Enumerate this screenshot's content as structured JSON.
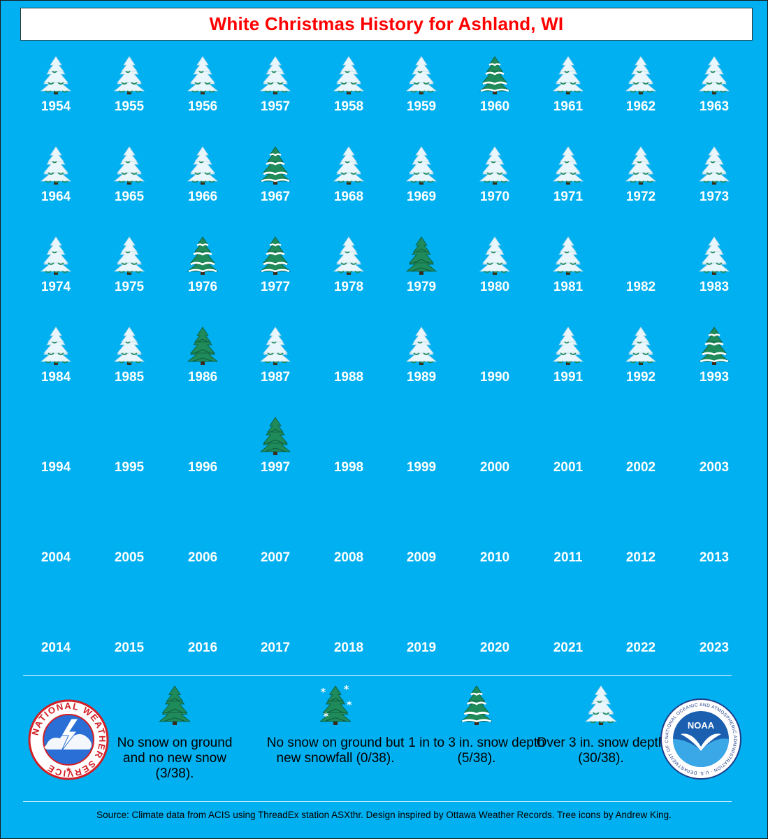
{
  "title": "White Christmas History for Ashland, WI",
  "colors": {
    "background": "#00b0f0",
    "title": "#ff0000",
    "tree_green": "#1f8a5a",
    "tree_dark": "#0e5a3a",
    "snow": "#ffffff"
  },
  "grid": {
    "columns": 10,
    "rows": [
      [
        {
          "year": "1954",
          "icon": "over-3"
        },
        {
          "year": "1955",
          "icon": "over-3"
        },
        {
          "year": "1956",
          "icon": "over-3"
        },
        {
          "year": "1957",
          "icon": "over-3"
        },
        {
          "year": "1958",
          "icon": "over-3"
        },
        {
          "year": "1959",
          "icon": "over-3"
        },
        {
          "year": "1960",
          "icon": "1-to-3"
        },
        {
          "year": "1961",
          "icon": "over-3"
        },
        {
          "year": "1962",
          "icon": "over-3"
        },
        {
          "year": "1963",
          "icon": "over-3"
        }
      ],
      [
        {
          "year": "1964",
          "icon": "over-3"
        },
        {
          "year": "1965",
          "icon": "over-3"
        },
        {
          "year": "1966",
          "icon": "over-3"
        },
        {
          "year": "1967",
          "icon": "1-to-3"
        },
        {
          "year": "1968",
          "icon": "over-3"
        },
        {
          "year": "1969",
          "icon": "over-3"
        },
        {
          "year": "1970",
          "icon": "over-3"
        },
        {
          "year": "1971",
          "icon": "over-3"
        },
        {
          "year": "1972",
          "icon": "over-3"
        },
        {
          "year": "1973",
          "icon": "over-3"
        }
      ],
      [
        {
          "year": "1974",
          "icon": "over-3"
        },
        {
          "year": "1975",
          "icon": "over-3"
        },
        {
          "year": "1976",
          "icon": "1-to-3"
        },
        {
          "year": "1977",
          "icon": "1-to-3"
        },
        {
          "year": "1978",
          "icon": "over-3"
        },
        {
          "year": "1979",
          "icon": "no-snow"
        },
        {
          "year": "1980",
          "icon": "over-3"
        },
        {
          "year": "1981",
          "icon": "over-3"
        },
        {
          "year": "1982",
          "icon": "none"
        },
        {
          "year": "1983",
          "icon": "over-3"
        }
      ],
      [
        {
          "year": "1984",
          "icon": "over-3"
        },
        {
          "year": "1985",
          "icon": "over-3"
        },
        {
          "year": "1986",
          "icon": "no-snow"
        },
        {
          "year": "1987",
          "icon": "over-3"
        },
        {
          "year": "1988",
          "icon": "none"
        },
        {
          "year": "1989",
          "icon": "over-3"
        },
        {
          "year": "1990",
          "icon": "none"
        },
        {
          "year": "1991",
          "icon": "over-3"
        },
        {
          "year": "1992",
          "icon": "over-3"
        },
        {
          "year": "1993",
          "icon": "1-to-3"
        }
      ],
      [
        {
          "year": "1994",
          "icon": "none"
        },
        {
          "year": "1995",
          "icon": "none"
        },
        {
          "year": "1996",
          "icon": "none"
        },
        {
          "year": "1997",
          "icon": "no-snow"
        },
        {
          "year": "1998",
          "icon": "none"
        },
        {
          "year": "1999",
          "icon": "none"
        },
        {
          "year": "2000",
          "icon": "none"
        },
        {
          "year": "2001",
          "icon": "none"
        },
        {
          "year": "2002",
          "icon": "none"
        },
        {
          "year": "2003",
          "icon": "none"
        }
      ],
      [
        {
          "year": "2004",
          "icon": "none"
        },
        {
          "year": "2005",
          "icon": "none"
        },
        {
          "year": "2006",
          "icon": "none"
        },
        {
          "year": "2007",
          "icon": "none"
        },
        {
          "year": "2008",
          "icon": "none"
        },
        {
          "year": "2009",
          "icon": "none"
        },
        {
          "year": "2010",
          "icon": "none"
        },
        {
          "year": "2011",
          "icon": "none"
        },
        {
          "year": "2012",
          "icon": "none"
        },
        {
          "year": "2013",
          "icon": "none"
        }
      ],
      [
        {
          "year": "2014",
          "icon": "none"
        },
        {
          "year": "2015",
          "icon": "none"
        },
        {
          "year": "2016",
          "icon": "none"
        },
        {
          "year": "2017",
          "icon": "none"
        },
        {
          "year": "2018",
          "icon": "none"
        },
        {
          "year": "2019",
          "icon": "none"
        },
        {
          "year": "2020",
          "icon": "none"
        },
        {
          "year": "2021",
          "icon": "none"
        },
        {
          "year": "2022",
          "icon": "none"
        },
        {
          "year": "2023",
          "icon": "none"
        }
      ]
    ]
  },
  "legend": [
    {
      "icon": "no-snow",
      "text": "No snow on ground and no new snow (3/38)."
    },
    {
      "icon": "new-snowfall",
      "text": "No snow on ground but new snowfall (0/38)."
    },
    {
      "icon": "1-to-3",
      "text": "1 in to 3 in. snow depth (5/38)."
    },
    {
      "icon": "over-3",
      "text": "Over 3 in. snow depth (30/38)."
    }
  ],
  "logos": {
    "nws_text": "NATIONAL WEATHER SERVICE",
    "noaa_text": "NOAA",
    "noaa_ring_text": "NATIONAL OCEANIC AND ATMOSPHERIC ADMINISTRATION · U.S. DEPARTMENT OF COMMERCE"
  },
  "source": "Source: Climate data from ACIS using ThreadEx station ASXthr. Design inspired by Ottawa Weather Records. Tree icons by Andrew King."
}
